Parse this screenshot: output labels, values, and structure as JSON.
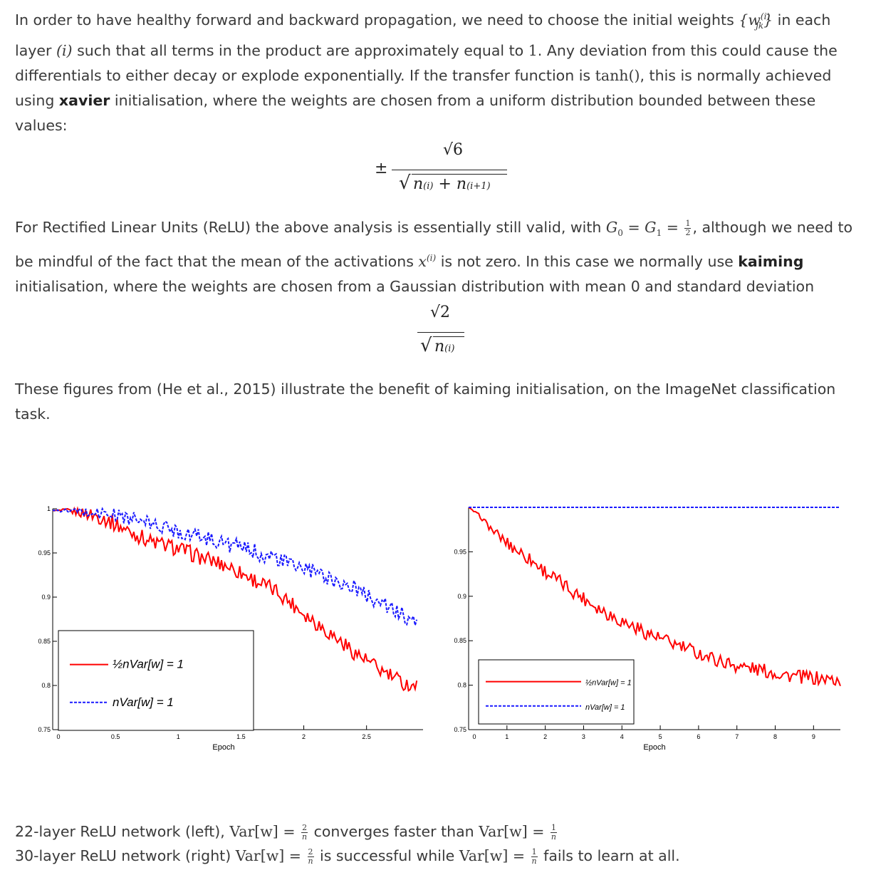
{
  "para1": {
    "t1": "In order to have healthy forward and backward propagation, we need to choose the initial weights",
    "t2": "in each layer",
    "t3": "such that all terms in the product are approximately equal to",
    "one": "1",
    "t4": ". Any deviation from this could cause the differentials to either decay or explode exponentially. If the transfer function is",
    "tanh": "tanh()",
    "t5": ", this is normally achieved using",
    "bold": "xavier",
    "t6": "initialisation, where the weights are chosen from a uniform distribution bounded between these values:"
  },
  "eq_xavier": {
    "pm": "±",
    "num": "√6",
    "den_a": "n",
    "den_a_sub": "(i)",
    "plus": "+",
    "den_b": "n",
    "den_b_sub": "(i+1)"
  },
  "para2": {
    "t1": "For Rectified Linear Units (ReLU) the above analysis is essentially still valid, with",
    "g0": "G",
    "g0_sub": "0",
    "eq1": "=",
    "g1": "G",
    "g1_sub": "1",
    "eq2": "=",
    "half_num": "1",
    "half_den": "2",
    "t2": ", although we need to be mindful of the fact that the mean of the activations",
    "x": "x",
    "x_sup": "(i)",
    "t3": "is not zero. In this case we normally use",
    "bold": "kaiming",
    "t4": "initialisation, where the weights are chosen from a Gaussian distribution with mean 0 and standard deviation"
  },
  "eq_kaiming": {
    "num": "√2",
    "den": "n",
    "den_sub": "(i)"
  },
  "para3": "These figures from (He et al., 2015) illustrate the benefit of kaiming initialisation, on the ImageNet classification task.",
  "caption": {
    "l1_a": "22-layer ReLU network (left),",
    "l1_b": "converges faster than",
    "l2_a": "30-layer ReLU network (right)",
    "l2_b": "is successful while",
    "l2_c": "fails to learn at all.",
    "var": "Var[w]",
    "eq": "=",
    "two": "2",
    "one": "1",
    "n": "n"
  },
  "legend": {
    "red": "½nVar[w] = 1",
    "blue": "nVar[w] = 1"
  },
  "colors": {
    "red": "#ff0000",
    "blue": "#1a1aff",
    "text": "#3a3a3a"
  },
  "chart_data": [
    {
      "type": "line",
      "xlabel": "Epoch",
      "xlim": [
        0,
        2.95
      ],
      "ylim": [
        0.75,
        1.0
      ],
      "xticks": [
        0,
        0.5,
        1,
        1.5,
        2,
        2.5
      ],
      "yticks": [
        0.75,
        0.8,
        0.85,
        0.9,
        0.95,
        1
      ],
      "xtick_labels": [
        "0",
        "0.5",
        "1",
        "1.5",
        "2",
        "2.5"
      ],
      "ytick_labels": [
        "0.75",
        "0.8",
        "0.85",
        "0.9",
        "0.95",
        "1"
      ],
      "legend_placement": "bottom-left",
      "series": [
        {
          "name": "½nVar[w] = 1",
          "color": "red",
          "style": "solid",
          "x": [
            0,
            0.2,
            0.4,
            0.6,
            0.8,
            1.0,
            1.2,
            1.4,
            1.6,
            1.8,
            2.0,
            2.2,
            2.4,
            2.6,
            2.8,
            2.9
          ],
          "y": [
            0.998,
            0.997,
            0.99,
            0.975,
            0.962,
            0.955,
            0.944,
            0.935,
            0.92,
            0.905,
            0.882,
            0.86,
            0.838,
            0.818,
            0.802,
            0.8
          ]
        },
        {
          "name": "nVar[w] = 1",
          "color": "blue",
          "style": "dashed",
          "x": [
            0,
            0.2,
            0.4,
            0.6,
            0.8,
            1.0,
            1.2,
            1.4,
            1.6,
            1.8,
            2.0,
            2.2,
            2.4,
            2.6,
            2.8,
            2.9
          ],
          "y": [
            0.998,
            0.997,
            0.995,
            0.99,
            0.982,
            0.975,
            0.968,
            0.96,
            0.952,
            0.942,
            0.932,
            0.922,
            0.91,
            0.895,
            0.878,
            0.868
          ]
        }
      ]
    },
    {
      "type": "line",
      "xlabel": "Epoch",
      "xlim": [
        0,
        9.7
      ],
      "ylim": [
        0.75,
        1.0
      ],
      "xticks": [
        0,
        1,
        2,
        3,
        4,
        5,
        6,
        7,
        8,
        9
      ],
      "yticks": [
        0.75,
        0.8,
        0.85,
        0.9,
        0.95
      ],
      "xtick_labels": [
        "0",
        "1",
        "2",
        "3",
        "4",
        "5",
        "6",
        "7",
        "8",
        "9"
      ],
      "ytick_labels": [
        "0.75",
        "0.8",
        "0.85",
        "0.9",
        "0.95"
      ],
      "legend_placement": "bottom-left",
      "series": [
        {
          "name": "½nVar[w] = 1",
          "color": "red",
          "style": "solid",
          "x": [
            0,
            0.3,
            0.6,
            1.0,
            1.5,
            2.0,
            2.5,
            3.0,
            3.5,
            4.0,
            4.5,
            5.0,
            5.5,
            6.0,
            6.5,
            7.0,
            7.5,
            8.0,
            8.5,
            9.0,
            9.5,
            9.7
          ],
          "y": [
            1.0,
            0.99,
            0.975,
            0.96,
            0.945,
            0.928,
            0.912,
            0.898,
            0.884,
            0.872,
            0.862,
            0.852,
            0.844,
            0.836,
            0.828,
            0.822,
            0.818,
            0.814,
            0.81,
            0.808,
            0.806,
            0.805
          ]
        },
        {
          "name": "nVar[w] = 1",
          "color": "blue",
          "style": "dashed",
          "x": [
            0,
            9.7
          ],
          "y": [
            1.0,
            1.0
          ]
        }
      ]
    }
  ]
}
